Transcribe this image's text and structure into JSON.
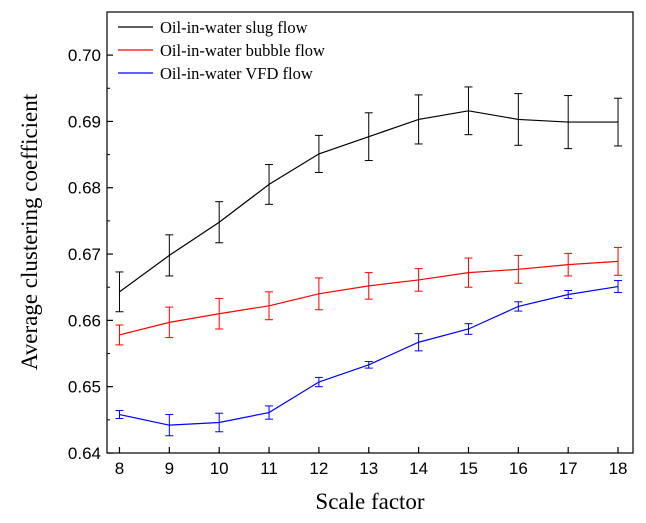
{
  "chart_data": {
    "type": "line",
    "xlabel": "Scale factor",
    "ylabel": "Average  clustering coefficient",
    "xlim": [
      7.75,
      18.3
    ],
    "ylim": [
      0.64,
      0.7065
    ],
    "x": [
      8,
      9,
      10,
      11,
      12,
      13,
      14,
      15,
      16,
      17,
      18
    ],
    "xticks": [
      "8",
      "9",
      "10",
      "11",
      "12",
      "13",
      "14",
      "15",
      "16",
      "17",
      "18"
    ],
    "yticks": [
      "0.64",
      "0.65",
      "0.66",
      "0.67",
      "0.68",
      "0.69",
      "0.70"
    ],
    "ytick_values": [
      0.64,
      0.65,
      0.66,
      0.67,
      0.68,
      0.69,
      0.7
    ],
    "grid": false,
    "legend_position": "top-left",
    "series": [
      {
        "name": "Oil-in-water slug flow",
        "color": "#000000",
        "values": [
          0.6643,
          0.6698,
          0.6748,
          0.6805,
          0.6851,
          0.6877,
          0.6903,
          0.6916,
          0.6903,
          0.6899,
          0.6899
        ],
        "errors": [
          0.003,
          0.0031,
          0.0031,
          0.003,
          0.0028,
          0.0036,
          0.0037,
          0.0036,
          0.0039,
          0.004,
          0.0036
        ]
      },
      {
        "name": "Oil-in-water bubble flow",
        "color": "#ff0000",
        "values": [
          0.6578,
          0.6597,
          0.661,
          0.6622,
          0.664,
          0.6652,
          0.6661,
          0.6672,
          0.6677,
          0.6684,
          0.6689
        ],
        "errors": [
          0.0015,
          0.0023,
          0.0023,
          0.0021,
          0.0024,
          0.002,
          0.0017,
          0.0022,
          0.0021,
          0.0017,
          0.0021
        ]
      },
      {
        "name": "Oil-in-water VFD flow",
        "color": "#0000ff",
        "values": [
          0.6458,
          0.6442,
          0.6446,
          0.6461,
          0.6507,
          0.6533,
          0.6567,
          0.6587,
          0.6621,
          0.6639,
          0.6651
        ],
        "errors": [
          0.0006,
          0.0016,
          0.0014,
          0.001,
          0.0007,
          0.0005,
          0.0013,
          0.0008,
          0.0007,
          0.0006,
          0.0009
        ]
      }
    ]
  }
}
